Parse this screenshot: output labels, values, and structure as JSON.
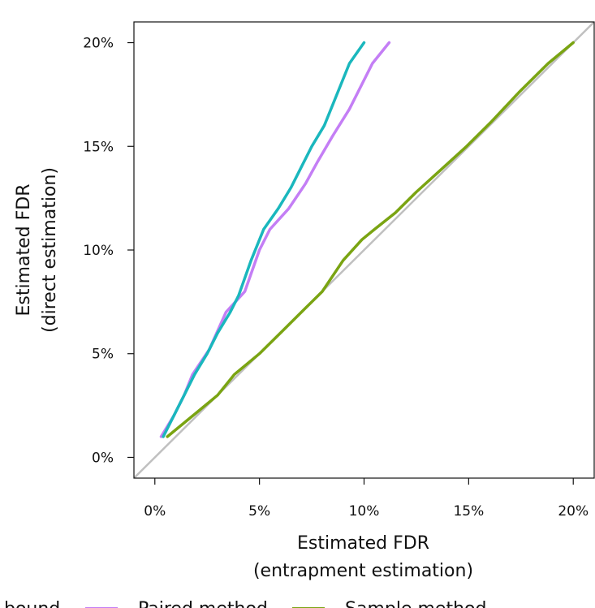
{
  "chart_data": {
    "type": "line",
    "xlabel": [
      "Estimated FDR",
      "(entrapment estimation)"
    ],
    "ylabel": [
      "Estimated FDR",
      "(direct estimation)"
    ],
    "xlim": [
      -1,
      21
    ],
    "ylim": [
      -1,
      21
    ],
    "x_ticks": [
      0,
      5,
      10,
      15,
      20
    ],
    "y_ticks": [
      0,
      5,
      10,
      15,
      20
    ],
    "x_tick_labels": [
      "0%",
      "5%",
      "10%",
      "15%",
      "20%"
    ],
    "y_tick_labels": [
      "0%",
      "5%",
      "10%",
      "15%",
      "20%"
    ],
    "grid": false,
    "diagonal_reference": {
      "color": "#c0c0c0"
    },
    "legend": {
      "placement": "bottom",
      "items": [
        {
          "label": "bound",
          "color": "#1ab7bd"
        },
        {
          "label": "Paired method",
          "color": "#c47ef5"
        },
        {
          "label": "Sample method",
          "color": "#7aa412"
        }
      ]
    },
    "series": [
      {
        "color": "#1ab7bd",
        "x": [
          0.4,
          0.9,
          1.4,
          1.9,
          2.5,
          3.0,
          3.6,
          4.0,
          4.6,
          5.2,
          5.9,
          6.5,
          7.0,
          7.5,
          8.1,
          8.7,
          9.3,
          10.0
        ],
        "y": [
          1.0,
          2.0,
          3.0,
          4.0,
          5.0,
          6.0,
          7.0,
          7.8,
          9.5,
          11.0,
          12.0,
          13.0,
          14.0,
          15.0,
          16.0,
          17.5,
          19.0,
          20.0
        ]
      },
      {
        "color": "#c47ef5",
        "x": [
          0.3,
          0.9,
          1.4,
          1.8,
          2.6,
          3.4,
          4.3,
          5.0,
          5.5,
          6.4,
          7.2,
          7.8,
          8.5,
          9.3,
          10.4,
          11.2
        ],
        "y": [
          1.0,
          2.0,
          3.0,
          4.0,
          5.2,
          7.0,
          8.0,
          10.0,
          11.0,
          12.0,
          13.2,
          14.3,
          15.5,
          16.8,
          19.0,
          20.0
        ]
      },
      {
        "color": "#7aa412",
        "x": [
          0.6,
          1.8,
          3.0,
          3.8,
          5.0,
          6.2,
          7.0,
          8.0,
          9.0,
          9.9,
          10.5,
          11.5,
          12.5,
          13.7,
          14.9,
          16.1,
          17.4,
          18.8,
          20.0
        ],
        "y": [
          1.0,
          2.0,
          3.0,
          4.0,
          5.0,
          6.2,
          7.0,
          8.0,
          9.5,
          10.5,
          11.0,
          11.8,
          12.8,
          13.9,
          15.0,
          16.2,
          17.6,
          19.0,
          20.0
        ]
      }
    ]
  }
}
